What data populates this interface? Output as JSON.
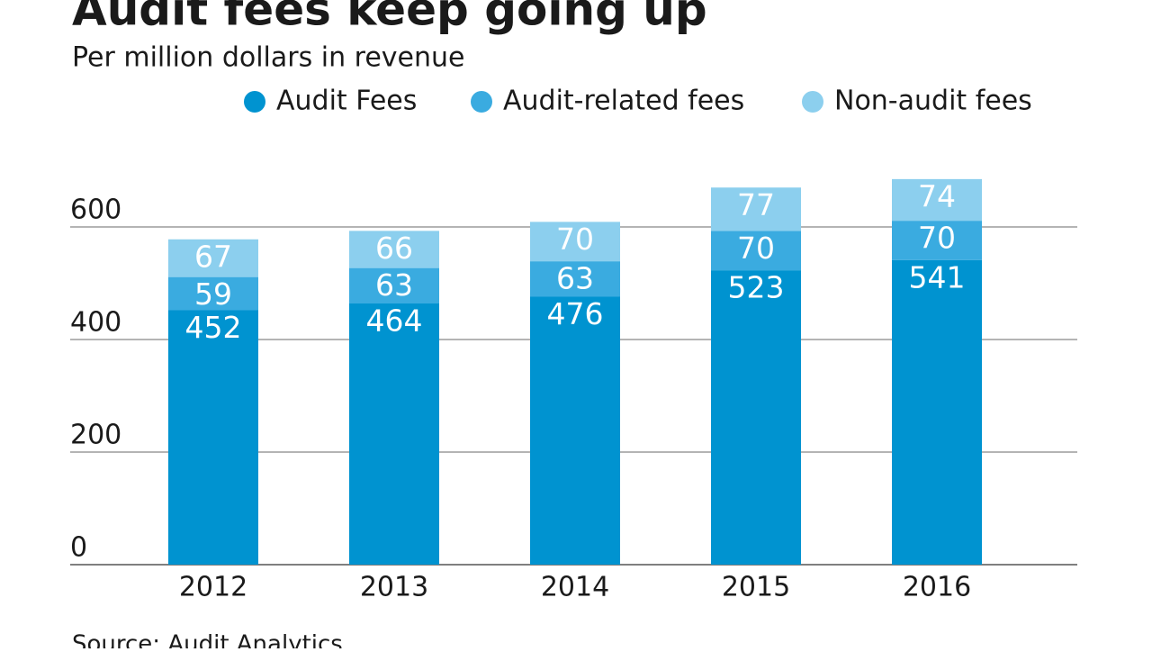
{
  "chart_data": {
    "type": "stacked-bar",
    "title": "Audit fees keep going up",
    "subtitle": "Per million dollars in revenue",
    "source": "Source: Audit Analytics",
    "categories": [
      "2012",
      "2013",
      "2014",
      "2015",
      "2016"
    ],
    "series": [
      {
        "name": "Audit Fees",
        "color": "#0093d0",
        "values": [
          452,
          464,
          476,
          523,
          541
        ]
      },
      {
        "name": "Audit-related fees",
        "color": "#3aabe0",
        "values": [
          59,
          63,
          63,
          70,
          70
        ]
      },
      {
        "name": "Non-audit fees",
        "color": "#8ccfee",
        "values": [
          67,
          66,
          70,
          77,
          74
        ]
      }
    ],
    "ylim": [
      0,
      700
    ],
    "yticks": [
      0,
      200,
      400,
      600
    ],
    "grid": true
  }
}
